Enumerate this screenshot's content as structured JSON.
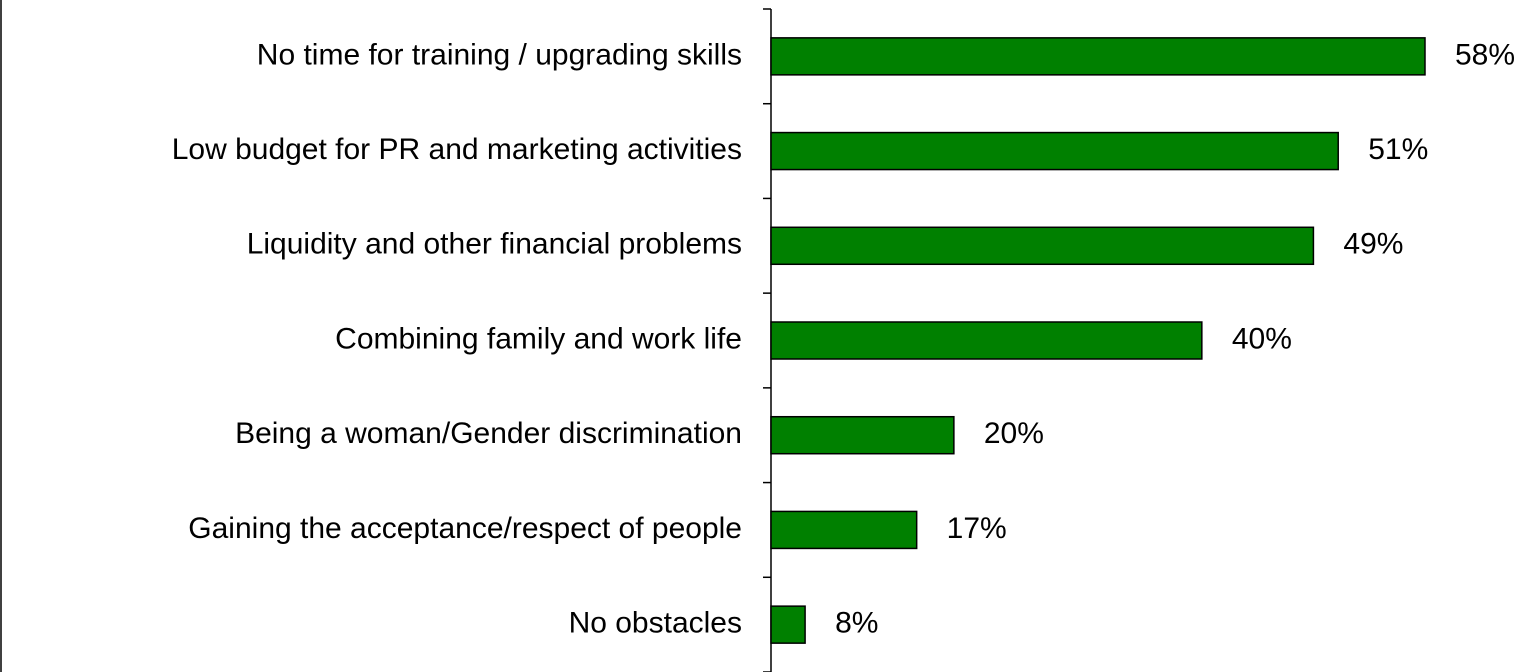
{
  "chart_data": {
    "type": "bar",
    "orientation": "horizontal",
    "categories": [
      "No time for training / upgrading skills",
      "Low budget for PR and marketing activities",
      "Liquidity and other financial problems",
      "Combining family and work life",
      "Being a woman/Gender discrimination",
      "Gaining the acceptance/respect of people",
      "No obstacles"
    ],
    "values": [
      58,
      51,
      49,
      40,
      20,
      17,
      8
    ],
    "value_labels": [
      "58%",
      "51%",
      "49%",
      "40%",
      "20%",
      "17%",
      "8%"
    ],
    "color": "#008000",
    "xlim": [
      5.25,
      58
    ]
  }
}
